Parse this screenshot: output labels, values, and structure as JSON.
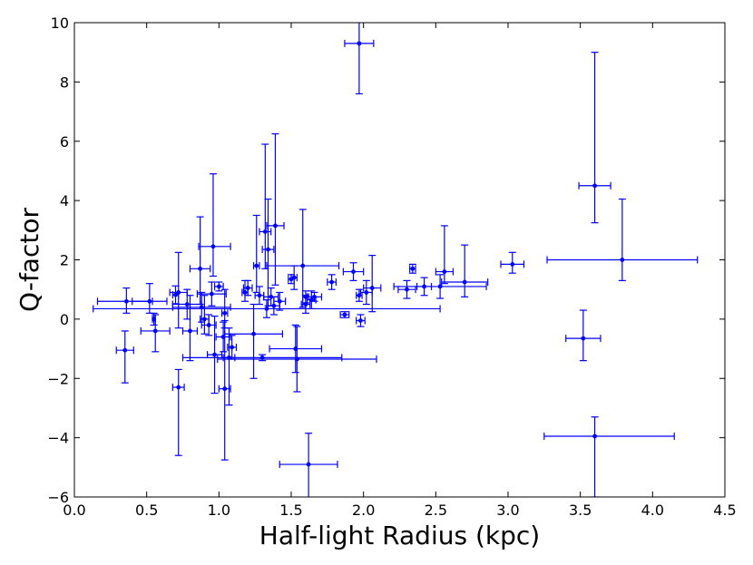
{
  "chart_data": {
    "type": "scatter",
    "title": "",
    "xlabel": "Half-light Radius (kpc)",
    "ylabel": "Q-factor",
    "xlim": [
      0.0,
      4.5
    ],
    "ylim": [
      -6,
      10
    ],
    "xticks": [
      0.0,
      0.5,
      1.0,
      1.5,
      2.0,
      2.5,
      3.0,
      3.5,
      4.0,
      4.5
    ],
    "xtick_labels": [
      "0.0",
      "0.5",
      "1.0",
      "1.5",
      "2.0",
      "2.5",
      "3.0",
      "3.5",
      "4.0",
      "4.5"
    ],
    "yticks": [
      -6,
      -4,
      -2,
      0,
      2,
      4,
      6,
      8,
      10
    ],
    "ytick_labels": [
      "−6",
      "−4",
      "−2",
      "0",
      "2",
      "4",
      "6",
      "8",
      "10"
    ],
    "grid": false,
    "legend": "none",
    "marker_color": "#0000ff",
    "series": [
      {
        "points": [
          {
            "x": 0.36,
            "y": 0.6,
            "xerr": [
              0.2,
              0.18
            ],
            "yerr": [
              0.4,
              0.45
            ]
          },
          {
            "x": 0.35,
            "y": -1.05,
            "xerr": [
              0.06,
              0.06
            ],
            "yerr": [
              1.1,
              0.65
            ]
          },
          {
            "x": 0.52,
            "y": 0.6,
            "xerr": [
              0.12,
              0.12
            ],
            "yerr": [
              0.4,
              0.6
            ]
          },
          {
            "x": 0.55,
            "y": 0.0,
            "xerr": [
              0.01,
              0.01
            ],
            "yerr": [
              0.2,
              0.2
            ]
          },
          {
            "x": 0.56,
            "y": -0.4,
            "xerr": [
              0.1,
              0.1
            ],
            "yerr": [
              0.7,
              0.55
            ]
          },
          {
            "x": 0.7,
            "y": 0.82,
            "xerr": [
              0.02,
              0.02
            ],
            "yerr": [
              0.3,
              0.3
            ]
          },
          {
            "x": 0.72,
            "y": 0.9,
            "xerr": [
              0.06,
              0.06
            ],
            "yerr": [
              1.2,
              1.35
            ]
          },
          {
            "x": 0.72,
            "y": -2.3,
            "xerr": [
              0.04,
              0.04
            ],
            "yerr": [
              2.3,
              0.6
            ]
          },
          {
            "x": 0.78,
            "y": 0.5,
            "xerr": [
              0.1,
              0.1
            ],
            "yerr": [
              0.5,
              0.5
            ]
          },
          {
            "x": 0.8,
            "y": -0.4,
            "xerr": [
              0.05,
              0.05
            ],
            "yerr": [
              1.0,
              1.2
            ]
          },
          {
            "x": 0.87,
            "y": 1.7,
            "xerr": [
              0.07,
              0.07
            ],
            "yerr": [
              1.2,
              1.75
            ]
          },
          {
            "x": 0.88,
            "y": 0.4,
            "xerr": [
              0.2,
              0.2
            ],
            "yerr": [
              0.5,
              0.5
            ]
          },
          {
            "x": 0.9,
            "y": 0.0,
            "xerr": [
              0.03,
              0.03
            ],
            "yerr": [
              0.5,
              0.8
            ]
          },
          {
            "x": 0.93,
            "y": -0.2,
            "xerr": [
              0.05,
              0.05
            ],
            "yerr": [
              0.35,
              0.35
            ]
          },
          {
            "x": 0.96,
            "y": 2.45,
            "xerr": [
              0.1,
              0.12
            ],
            "yerr": [
              1.0,
              2.45
            ]
          },
          {
            "x": 0.97,
            "y": -1.2,
            "xerr": [
              0.05,
              0.05
            ],
            "yerr": [
              1.3,
              1.3
            ]
          },
          {
            "x": 0.95,
            "y": 0.85,
            "xerr": [
              0.1,
              0.1
            ],
            "yerr": [
              0.4,
              0.4
            ]
          },
          {
            "x": 1.0,
            "y": 1.1,
            "xerr": [
              0.03,
              0.03
            ],
            "yerr": [
              0.15,
              0.15
            ]
          },
          {
            "x": 1.04,
            "y": 0.2,
            "xerr": [
              0.02,
              0.02
            ],
            "yerr": [
              0.5,
              0.8
            ]
          },
          {
            "x": 1.03,
            "y": -0.6,
            "xerr": [
              0.05,
              0.05
            ],
            "yerr": [
              0.5,
              0.5
            ]
          },
          {
            "x": 1.04,
            "y": -2.35,
            "xerr": [
              0.04,
              0.04
            ],
            "yerr": [
              2.4,
              2.3
            ]
          },
          {
            "x": 1.07,
            "y": -1.3,
            "xerr": [
              0.04,
              0.04
            ],
            "yerr": [
              1.6,
              1.0
            ]
          },
          {
            "x": 1.09,
            "y": -0.95,
            "xerr": [
              0.03,
              0.03
            ],
            "yerr": [
              0.4,
              0.4
            ]
          },
          {
            "x": 1.18,
            "y": 0.9,
            "xerr": [
              0.02,
              0.02
            ],
            "yerr": [
              0.3,
              0.4
            ]
          },
          {
            "x": 1.2,
            "y": 1.05,
            "xerr": [
              0.03,
              0.03
            ],
            "yerr": [
              0.25,
              0.25
            ]
          },
          {
            "x": 1.24,
            "y": -0.5,
            "xerr": [
              0.2,
              0.2
            ],
            "yerr": [
              1.5,
              1.0
            ]
          },
          {
            "x": 1.26,
            "y": 1.8,
            "xerr": [
              0.02,
              0.02
            ],
            "yerr": [
              0.9,
              1.7
            ]
          },
          {
            "x": 1.28,
            "y": 0.8,
            "xerr": [
              0.03,
              0.03
            ],
            "yerr": [
              0.3,
              0.3
            ]
          },
          {
            "x": 1.32,
            "y": 2.95,
            "xerr": [
              0.04,
              0.04
            ],
            "yerr": [
              1.25,
              2.95
            ]
          },
          {
            "x": 1.33,
            "y": 0.35,
            "xerr": [
              1.2,
              1.2
            ],
            "yerr": [
              0.3,
              0.3
            ]
          },
          {
            "x": 1.34,
            "y": 2.35,
            "xerr": [
              0.04,
              0.04
            ],
            "yerr": [
              1.9,
              1.7
            ]
          },
          {
            "x": 1.36,
            "y": 0.75,
            "xerr": [
              0.05,
              0.05
            ],
            "yerr": [
              0.3,
              0.3
            ]
          },
          {
            "x": 1.38,
            "y": 0.45,
            "xerr": [
              0.04,
              0.04
            ],
            "yerr": [
              0.3,
              0.3
            ]
          },
          {
            "x": 1.39,
            "y": 3.15,
            "xerr": [
              0.06,
              0.06
            ],
            "yerr": [
              2.0,
              3.1
            ]
          },
          {
            "x": 1.3,
            "y": -1.3,
            "xerr": [
              0.55,
              0.55
            ],
            "yerr": [
              0.1,
              0.1
            ]
          },
          {
            "x": 1.42,
            "y": 0.6,
            "xerr": [
              0.04,
              0.04
            ],
            "yerr": [
              0.3,
              0.3
            ]
          },
          {
            "x": 1.5,
            "y": 1.35,
            "xerr": [
              0.02,
              0.02
            ],
            "yerr": [
              0.15,
              0.15
            ]
          },
          {
            "x": 1.52,
            "y": 1.4,
            "xerr": [
              0.02,
              0.02
            ],
            "yerr": [
              0.4,
              0.4
            ]
          },
          {
            "x": 1.53,
            "y": -1.0,
            "xerr": [
              0.18,
              0.18
            ],
            "yerr": [
              0.8,
              0.8
            ]
          },
          {
            "x": 1.54,
            "y": -1.35,
            "xerr": [
              0.55,
              0.55
            ],
            "yerr": [
              1.1,
              1.1
            ]
          },
          {
            "x": 1.58,
            "y": 1.8,
            "xerr": [
              0.25,
              0.25
            ],
            "yerr": [
              1.4,
              1.9
            ]
          },
          {
            "x": 1.6,
            "y": 0.75,
            "xerr": [
              0.02,
              0.02
            ],
            "yerr": [
              0.2,
              0.2
            ]
          },
          {
            "x": 1.6,
            "y": 0.5,
            "xerr": [
              0.03,
              0.03
            ],
            "yerr": [
              0.3,
              0.3
            ]
          },
          {
            "x": 1.64,
            "y": 0.65,
            "xerr": [
              0.03,
              0.03
            ],
            "yerr": [
              0.3,
              0.3
            ]
          },
          {
            "x": 1.66,
            "y": 0.75,
            "xerr": [
              0.05,
              0.05
            ],
            "yerr": [
              0.15,
              0.15
            ]
          },
          {
            "x": 1.62,
            "y": -4.9,
            "xerr": [
              0.2,
              0.2
            ],
            "yerr": [
              1.2,
              1.05
            ]
          },
          {
            "x": 1.78,
            "y": 1.25,
            "xerr": [
              0.03,
              0.03
            ],
            "yerr": [
              0.25,
              0.25
            ]
          },
          {
            "x": 1.87,
            "y": 0.15,
            "xerr": [
              0.03,
              0.03
            ],
            "yerr": [
              0.1,
              0.1
            ]
          },
          {
            "x": 1.93,
            "y": 1.6,
            "xerr": [
              0.07,
              0.07
            ],
            "yerr": [
              0.3,
              0.3
            ]
          },
          {
            "x": 1.97,
            "y": 9.3,
            "xerr": [
              0.1,
              0.1
            ],
            "yerr": [
              1.7,
              0.8
            ]
          },
          {
            "x": 1.97,
            "y": 0.8,
            "xerr": [
              0.02,
              0.02
            ],
            "yerr": [
              0.2,
              0.2
            ]
          },
          {
            "x": 1.98,
            "y": -0.05,
            "xerr": [
              0.03,
              0.03
            ],
            "yerr": [
              0.2,
              0.2
            ]
          },
          {
            "x": 2.02,
            "y": 0.9,
            "xerr": [
              0.04,
              0.04
            ],
            "yerr": [
              0.4,
              0.4
            ]
          },
          {
            "x": 2.06,
            "y": 1.05,
            "xerr": [
              0.06,
              0.06
            ],
            "yerr": [
              0.8,
              1.1
            ]
          },
          {
            "x": 2.3,
            "y": 1.0,
            "xerr": [
              0.06,
              0.06
            ],
            "yerr": [
              0.3,
              0.3
            ]
          },
          {
            "x": 2.34,
            "y": 1.7,
            "xerr": [
              0.02,
              0.02
            ],
            "yerr": [
              0.15,
              0.15
            ]
          },
          {
            "x": 2.42,
            "y": 1.1,
            "xerr": [
              0.05,
              0.05
            ],
            "yerr": [
              0.3,
              0.3
            ]
          },
          {
            "x": 2.53,
            "y": 1.1,
            "xerr": [
              0.32,
              0.32
            ],
            "yerr": [
              0.4,
              0.4
            ]
          },
          {
            "x": 2.56,
            "y": 1.6,
            "xerr": [
              0.06,
              0.06
            ],
            "yerr": [
              0.4,
              1.55
            ]
          },
          {
            "x": 2.7,
            "y": 1.25,
            "xerr": [
              0.16,
              0.16
            ],
            "yerr": [
              0.5,
              1.25
            ]
          },
          {
            "x": 3.03,
            "y": 1.85,
            "xerr": [
              0.08,
              0.08
            ],
            "yerr": [
              0.3,
              0.4
            ]
          },
          {
            "x": 3.52,
            "y": -0.65,
            "xerr": [
              0.12,
              0.12
            ],
            "yerr": [
              0.75,
              0.95
            ]
          },
          {
            "x": 3.6,
            "y": 4.5,
            "xerr": [
              0.11,
              0.11
            ],
            "yerr": [
              1.25,
              4.5
            ]
          },
          {
            "x": 3.6,
            "y": -3.95,
            "xerr": [
              0.35,
              0.55
            ],
            "yerr": [
              2.05,
              0.65
            ]
          },
          {
            "x": 3.79,
            "y": 2.0,
            "xerr": [
              0.52,
              0.52
            ],
            "yerr": [
              0.7,
              2.05
            ]
          }
        ]
      }
    ]
  }
}
